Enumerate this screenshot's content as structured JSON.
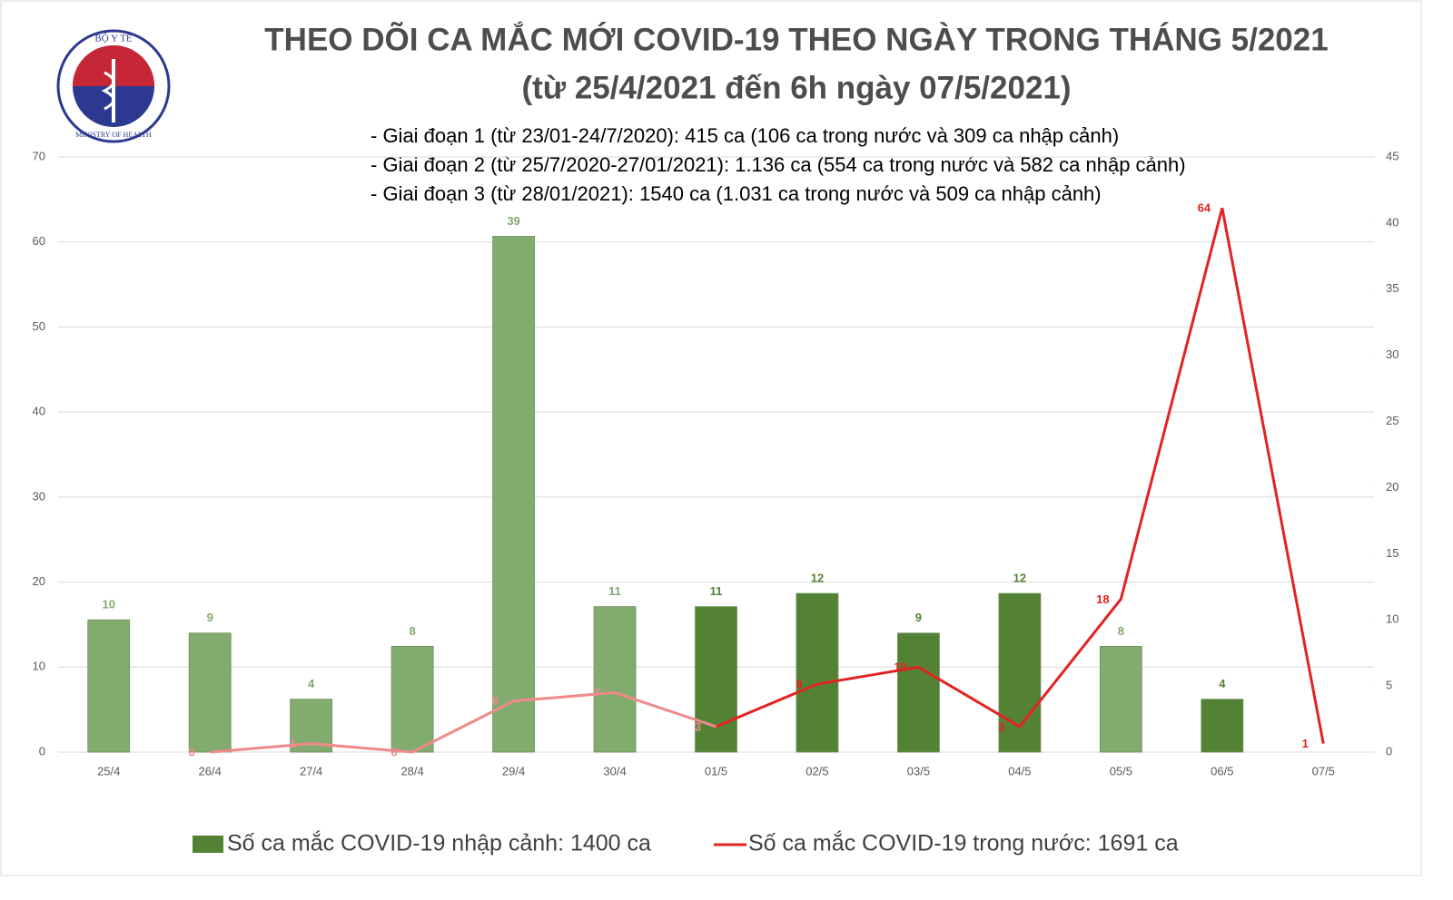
{
  "logo": {
    "top": "BỘ Y TẾ",
    "bottom": "MINISTRY OF HEALTH"
  },
  "chart_data": {
    "type": "bar-line",
    "title": "THEO DÕI CA MẮC MỚI COVID-19 THEO NGÀY TRONG THÁNG 5/2021",
    "subtitle": "(từ 25/4/2021 đến 6h ngày 07/5/2021)",
    "annotations": [
      "- Giai đoạn 1 (từ 23/01-24/7/2020): 415 ca (106 ca trong nước và 309 ca nhập cảnh)",
      "- Giai đoạn 2 (từ 25/7/2020-27/01/2021): 1.136 ca (554 ca trong nước và 582 ca nhập cảnh)",
      "- Giai đoạn 3 (từ 28/01/2021): 1540 ca (1.031 ca trong nước và 509 ca nhập cảnh)"
    ],
    "categories": [
      "25/4",
      "26/4",
      "27/4",
      "28/4",
      "29/4",
      "30/4",
      "01/5",
      "02/5",
      "03/5",
      "04/5",
      "05/5",
      "06/5",
      "07/5"
    ],
    "series": [
      {
        "name": "Số ca mắc COVID-19 nhập cảnh: 1400 ca",
        "kind": "bar",
        "axis": "y2",
        "color": "#548235",
        "colors": [
          "#82ab6f",
          "#82ab6f",
          "#82ab6f",
          "#82ab6f",
          "#82ab6f",
          "#82ab6f",
          "#548235",
          "#548235",
          "#548235",
          "#548235",
          "#82ab6f",
          "#548235",
          "#548235"
        ],
        "values": [
          10,
          9,
          4,
          8,
          39,
          11,
          11,
          12,
          9,
          12,
          8,
          4,
          null
        ]
      },
      {
        "name": "Số ca mắc COVID-19 trong nước: 1691 ca",
        "kind": "line",
        "color": "#e32222",
        "colors": [
          null,
          "#f08a8a",
          "#f08a8a",
          "#f08a8a",
          "#f08a8a",
          "#f08a8a",
          "#f08a8a",
          "#e32222",
          "#e32222",
          "#e32222",
          "#e32222",
          "#e32222",
          "#e32222"
        ],
        "values": [
          null,
          0,
          1,
          0,
          6,
          7,
          3,
          8,
          10,
          3,
          18,
          64,
          1
        ]
      }
    ],
    "ylim": [
      0,
      70
    ],
    "yticks": [
      0,
      10,
      20,
      30,
      40,
      50,
      60,
      70
    ],
    "y2lim": [
      0,
      45
    ],
    "y2ticks": [
      0,
      5,
      10,
      15,
      20,
      25,
      30,
      35,
      40,
      45
    ],
    "grid": true
  }
}
